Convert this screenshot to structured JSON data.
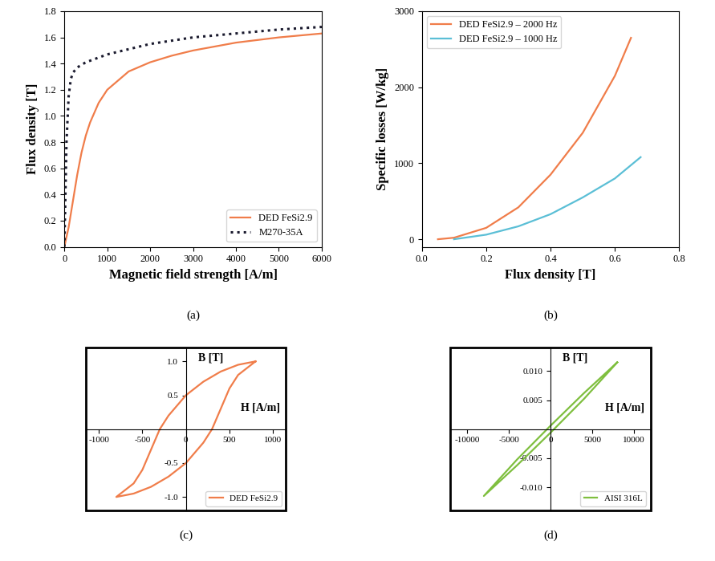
{
  "chart_data": [
    {
      "type": "line",
      "title": "(a)",
      "x_label": "Magnetic field strength [A/m]",
      "y_label": "Flux density [T]",
      "xlim": [
        0,
        6000
      ],
      "ylim": [
        0,
        1.8
      ],
      "xticks": [
        0,
        1000,
        2000,
        3000,
        4000,
        5000,
        6000
      ],
      "yticks": [
        {
          "value": 0,
          "label": "0.0"
        },
        {
          "value": 0.2,
          "label": "0.2"
        },
        {
          "value": 0.4,
          "label": "0.4"
        },
        {
          "value": 0.6,
          "label": "0.6"
        },
        {
          "value": 0.8,
          "label": "0.8"
        },
        {
          "value": 1.0,
          "label": "1.0"
        },
        {
          "value": 1.2,
          "label": "1.2"
        },
        {
          "value": 1.4,
          "label": "1.4"
        },
        {
          "value": 1.6,
          "label": "1.6"
        },
        {
          "value": 1.8,
          "label": "1.8"
        }
      ],
      "grid": false,
      "legend": "lower right",
      "series": [
        {
          "name": "DED FeSi2.9",
          "color": "#f07d4a",
          "line_style": "solid",
          "x": [
            0,
            100,
            200,
            300,
            400,
            500,
            600,
            800,
            1000,
            1500,
            2000,
            2500,
            3000,
            4000,
            5000,
            6000
          ],
          "values": [
            0.0,
            0.15,
            0.35,
            0.55,
            0.72,
            0.85,
            0.95,
            1.1,
            1.2,
            1.34,
            1.41,
            1.46,
            1.5,
            1.56,
            1.6,
            1.63
          ]
        },
        {
          "name": "M270-35A",
          "color": "#1a1a2e",
          "line_style": "dotted",
          "x": [
            0,
            25,
            50,
            100,
            150,
            200,
            300,
            500,
            1000,
            2000,
            3000,
            4000,
            5000,
            6000
          ],
          "values": [
            0.0,
            0.4,
            0.8,
            1.15,
            1.28,
            1.33,
            1.37,
            1.41,
            1.47,
            1.55,
            1.6,
            1.63,
            1.66,
            1.68
          ]
        }
      ]
    },
    {
      "type": "line",
      "title": "(b)",
      "x_label": "Flux density [T]",
      "y_label": "Specific losses [W/kg]",
      "xlim": [
        0,
        0.8
      ],
      "ylim": [
        -100,
        3000
      ],
      "xticks": [
        {
          "value": 0,
          "label": "0.0"
        },
        {
          "value": 0.2,
          "label": "0.2"
        },
        {
          "value": 0.4,
          "label": "0.4"
        },
        {
          "value": 0.6,
          "label": "0.6"
        },
        {
          "value": 0.8,
          "label": "0.8"
        }
      ],
      "yticks": [
        0,
        1000,
        2000,
        3000
      ],
      "grid": false,
      "legend": "upper left",
      "series": [
        {
          "name": "DED FeSi2.9 – 2000 Hz",
          "color": "#f07d4a",
          "line_style": "solid",
          "x": [
            0.05,
            0.1,
            0.2,
            0.3,
            0.4,
            0.5,
            0.6,
            0.65
          ],
          "values": [
            0,
            20,
            150,
            420,
            850,
            1400,
            2150,
            2650
          ]
        },
        {
          "name": "DED FeSi2.9 – 1000 Hz",
          "color": "#5bbfd6",
          "line_style": "solid",
          "x": [
            0.1,
            0.2,
            0.3,
            0.4,
            0.5,
            0.6,
            0.68
          ],
          "values": [
            0,
            60,
            170,
            330,
            550,
            800,
            1080
          ]
        }
      ]
    },
    {
      "type": "line",
      "title": "(c)",
      "x_label": "H [A/m]",
      "y_label": "B [T]",
      "xlim": [
        -1150,
        1150
      ],
      "ylim": [
        -1.2,
        1.2
      ],
      "xticks": [
        -1000,
        -500,
        0,
        500,
        1000
      ],
      "yticks": [
        {
          "value": -1.0,
          "label": "-1.0"
        },
        {
          "value": -0.5,
          "label": "-0.5"
        },
        {
          "value": 0.5,
          "label": "0.5"
        },
        {
          "value": 1.0,
          "label": "1.0"
        }
      ],
      "grid": false,
      "legend": "lower right",
      "series": [
        {
          "name": "DED FeSi2.9",
          "color": "#f07d4a",
          "line_style": "solid",
          "x": [
            800,
            600,
            400,
            200,
            0,
            -100,
            -200,
            -300,
            -400,
            -500,
            -600,
            -800,
            -600,
            -400,
            -200,
            0,
            100,
            200,
            300,
            400,
            500,
            600,
            800
          ],
          "values": [
            1.0,
            0.95,
            0.85,
            0.7,
            0.5,
            0.35,
            0.2,
            0.0,
            -0.3,
            -0.6,
            -0.8,
            -1.0,
            -0.95,
            -0.85,
            -0.7,
            -0.5,
            -0.35,
            -0.2,
            0.0,
            0.3,
            0.6,
            0.8,
            1.0
          ]
        }
      ]
    },
    {
      "type": "line",
      "title": "(d)",
      "x_label": "H [A/m]",
      "y_label": "B [T]",
      "xlim": [
        -12000,
        12000
      ],
      "ylim": [
        -0.014,
        0.014
      ],
      "xticks": [
        -10000,
        -5000,
        0,
        5000,
        10000
      ],
      "yticks": [
        {
          "value": -0.01,
          "label": "-0.010"
        },
        {
          "value": -0.005,
          "label": "-0.005"
        },
        {
          "value": 0.005,
          "label": "0.005"
        },
        {
          "value": 0.01,
          "label": "0.010"
        }
      ],
      "grid": false,
      "legend": "lower right",
      "series": [
        {
          "name": "AISI 316L",
          "color": "#7fbf3f",
          "line_style": "solid",
          "x": [
            8000,
            4000,
            0,
            -4000,
            -8000,
            -4000,
            0,
            4000,
            8000
          ],
          "values": [
            0.0115,
            0.0062,
            0.0006,
            -0.0052,
            -0.0115,
            -0.0062,
            -0.0006,
            0.0052,
            0.0115
          ]
        }
      ]
    }
  ]
}
